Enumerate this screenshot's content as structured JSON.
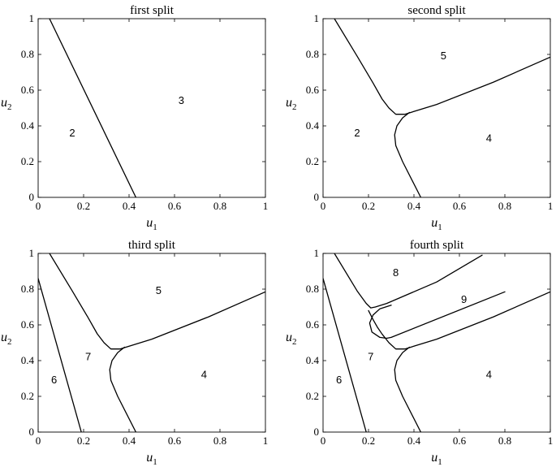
{
  "chart_data": [
    {
      "type": "line",
      "title": "first split",
      "xlabel": "u",
      "xlabel_sub": "1",
      "ylabel": "u",
      "ylabel_sub": "2",
      "xlim": [
        0,
        1
      ],
      "ylim": [
        0,
        1
      ],
      "xticks": [
        "0",
        "0.2",
        "0.4",
        "0.6",
        "0.8",
        "1"
      ],
      "yticks": [
        "0",
        "0.2",
        "0.4",
        "0.6",
        "0.8",
        "1"
      ],
      "grid": false,
      "boundaries": [
        [
          [
            0.05,
            1.0
          ],
          [
            0.43,
            0.0
          ]
        ]
      ],
      "region_labels": [
        {
          "text": "2",
          "x": 0.15,
          "y": 0.36
        },
        {
          "text": "3",
          "x": 0.63,
          "y": 0.54
        }
      ]
    },
    {
      "type": "line",
      "title": "second split",
      "xlabel": "u",
      "xlabel_sub": "1",
      "ylabel": "u",
      "ylabel_sub": "2",
      "xlim": [
        0,
        1
      ],
      "ylim": [
        0,
        1
      ],
      "xticks": [
        "0",
        "0.2",
        "0.4",
        "0.6",
        "0.8",
        "1"
      ],
      "yticks": [
        "0",
        "0.2",
        "0.4",
        "0.6",
        "0.8",
        "1"
      ],
      "grid": false,
      "boundaries": [
        [
          [
            0.05,
            1.0
          ],
          [
            0.15,
            0.79
          ],
          [
            0.22,
            0.64
          ],
          [
            0.26,
            0.55
          ],
          [
            0.29,
            0.5
          ],
          [
            0.32,
            0.465
          ],
          [
            0.36,
            0.465
          ],
          [
            0.5,
            0.52
          ],
          [
            0.75,
            0.645
          ],
          [
            1.0,
            0.785
          ]
        ],
        [
          [
            0.43,
            0.0
          ],
          [
            0.35,
            0.2
          ],
          [
            0.32,
            0.29
          ],
          [
            0.315,
            0.35
          ],
          [
            0.325,
            0.4
          ],
          [
            0.35,
            0.445
          ],
          [
            0.38,
            0.475
          ]
        ]
      ],
      "region_labels": [
        {
          "text": "5",
          "x": 0.53,
          "y": 0.79
        },
        {
          "text": "2",
          "x": 0.15,
          "y": 0.36
        },
        {
          "text": "4",
          "x": 0.73,
          "y": 0.33
        }
      ]
    },
    {
      "type": "line",
      "title": "third split",
      "xlabel": "u",
      "xlabel_sub": "1",
      "ylabel": "u",
      "ylabel_sub": "2",
      "xlim": [
        0,
        1
      ],
      "ylim": [
        0,
        1
      ],
      "xticks": [
        "0",
        "0.2",
        "0.4",
        "0.6",
        "0.8",
        "1"
      ],
      "yticks": [
        "0",
        "0.2",
        "0.4",
        "0.6",
        "0.8",
        "1"
      ],
      "grid": false,
      "boundaries": [
        [
          [
            0.05,
            1.0
          ],
          [
            0.15,
            0.79
          ],
          [
            0.22,
            0.64
          ],
          [
            0.26,
            0.55
          ],
          [
            0.29,
            0.5
          ],
          [
            0.32,
            0.465
          ],
          [
            0.36,
            0.465
          ],
          [
            0.5,
            0.52
          ],
          [
            0.75,
            0.645
          ],
          [
            1.0,
            0.785
          ]
        ],
        [
          [
            0.43,
            0.0
          ],
          [
            0.35,
            0.2
          ],
          [
            0.32,
            0.29
          ],
          [
            0.315,
            0.35
          ],
          [
            0.325,
            0.4
          ],
          [
            0.35,
            0.445
          ],
          [
            0.38,
            0.475
          ]
        ],
        [
          [
            0.0,
            0.86
          ],
          [
            0.19,
            0.0
          ]
        ]
      ],
      "region_labels": [
        {
          "text": "5",
          "x": 0.53,
          "y": 0.79
        },
        {
          "text": "7",
          "x": 0.22,
          "y": 0.42
        },
        {
          "text": "6",
          "x": 0.07,
          "y": 0.29
        },
        {
          "text": "4",
          "x": 0.73,
          "y": 0.32
        }
      ]
    },
    {
      "type": "line",
      "title": "fourth split",
      "xlabel": "u",
      "xlabel_sub": "1",
      "ylabel": "u",
      "ylabel_sub": "2",
      "xlim": [
        0,
        1
      ],
      "ylim": [
        0,
        1
      ],
      "xticks": [
        "0",
        "0.2",
        "0.4",
        "0.6",
        "0.8",
        "1"
      ],
      "yticks": [
        "0",
        "0.2",
        "0.4",
        "0.6",
        "0.8",
        "1"
      ],
      "grid": false,
      "boundaries": [
        [
          [
            0.05,
            1.0
          ],
          [
            0.15,
            0.79
          ],
          [
            0.19,
            0.72
          ],
          [
            0.21,
            0.695
          ],
          [
            0.23,
            0.7
          ],
          [
            0.28,
            0.72
          ],
          [
            0.5,
            0.84
          ],
          [
            0.7,
            0.99
          ]
        ],
        [
          [
            0.2,
            0.68
          ],
          [
            0.22,
            0.63
          ],
          [
            0.24,
            0.585
          ],
          [
            0.26,
            0.548
          ],
          [
            0.29,
            0.5
          ],
          [
            0.32,
            0.465
          ],
          [
            0.36,
            0.465
          ],
          [
            0.5,
            0.52
          ],
          [
            0.75,
            0.645
          ],
          [
            1.0,
            0.785
          ]
        ],
        [
          [
            0.43,
            0.0
          ],
          [
            0.35,
            0.2
          ],
          [
            0.32,
            0.29
          ],
          [
            0.315,
            0.35
          ],
          [
            0.325,
            0.4
          ],
          [
            0.35,
            0.445
          ],
          [
            0.38,
            0.475
          ]
        ],
        [
          [
            0.3,
            0.71
          ],
          [
            0.25,
            0.69
          ],
          [
            0.22,
            0.655
          ],
          [
            0.205,
            0.61
          ],
          [
            0.215,
            0.56
          ],
          [
            0.25,
            0.53
          ],
          [
            0.28,
            0.525
          ],
          [
            0.3,
            0.53
          ],
          [
            0.8,
            0.785
          ]
        ],
        [
          [
            0.0,
            0.86
          ],
          [
            0.19,
            0.0
          ]
        ]
      ],
      "region_labels": [
        {
          "text": "8",
          "x": 0.32,
          "y": 0.89
        },
        {
          "text": "9",
          "x": 0.62,
          "y": 0.74
        },
        {
          "text": "7",
          "x": 0.21,
          "y": 0.42
        },
        {
          "text": "6",
          "x": 0.07,
          "y": 0.29
        },
        {
          "text": "4",
          "x": 0.73,
          "y": 0.32
        }
      ]
    }
  ]
}
